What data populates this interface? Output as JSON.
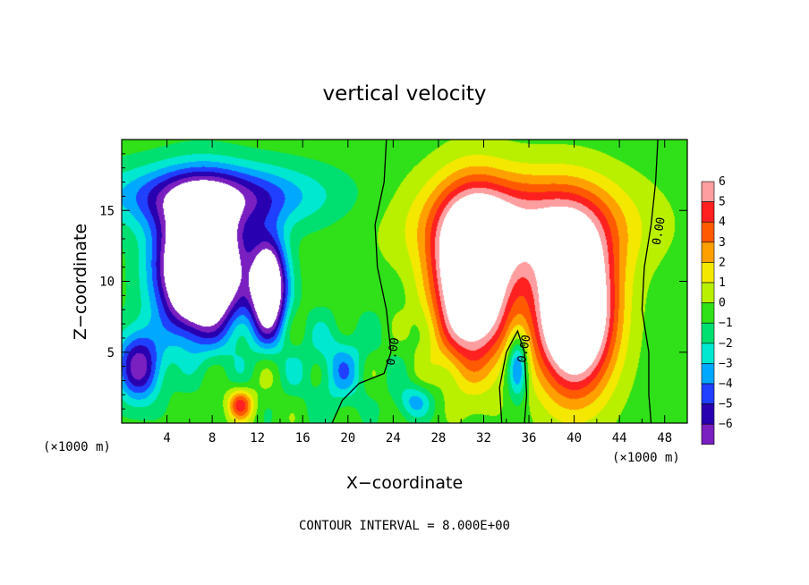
{
  "chart_data": {
    "type": "heatmap",
    "title": "vertical velocity",
    "xlabel": "X−coordinate",
    "ylabel": "Z−coordinate",
    "x_unit_left": "(×1000 m)",
    "x_unit_right": "(×1000 m)",
    "xlim": [
      0,
      50
    ],
    "ylim": [
      0,
      20
    ],
    "x_ticks": [
      4,
      8,
      12,
      16,
      20,
      24,
      28,
      32,
      36,
      40,
      44,
      48
    ],
    "x_tick_labels": [
      "4",
      "8",
      "12",
      "16",
      "20",
      "24",
      "28",
      "32",
      "36",
      "40",
      "44",
      "48"
    ],
    "y_ticks": [
      5,
      10,
      15
    ],
    "y_tick_labels": [
      "5",
      "10",
      "15"
    ],
    "colorbar": {
      "levels": [
        6,
        5,
        4,
        3,
        2,
        1,
        0,
        -1,
        -2,
        -3,
        -4,
        -5,
        -6
      ],
      "labels": [
        "6",
        "5",
        "4",
        "3",
        "2",
        "1",
        "0",
        "−1",
        "−2",
        "−3",
        "−4",
        "−5",
        "−6"
      ],
      "colors": [
        "#ff9ea0",
        "#ff2020",
        "#ff5a00",
        "#ffa000",
        "#f4e800",
        "#b8f000",
        "#30e018",
        "#00e070",
        "#00e8d0",
        "#00a8ff",
        "#2040ff",
        "#2800b0",
        "#7a1fc0"
      ]
    },
    "contour_interval_text": "CONTOUR INTERVAL = 8.000E+00",
    "contour_labels": [
      "0.00",
      "0.00",
      "0.00"
    ],
    "features": [
      {
        "sign": "negative",
        "x": 7,
        "z": 11,
        "peak": -14
      },
      {
        "sign": "negative",
        "x": 13,
        "z": 9.5,
        "peak": -10
      },
      {
        "sign": "positive",
        "x": 31,
        "z": 10,
        "peak": 12
      },
      {
        "sign": "positive",
        "x": 40,
        "z": 8,
        "peak": 13
      },
      {
        "sign": "positive",
        "x": 10.5,
        "z": 1.3,
        "peak": 5
      },
      {
        "sign": "negative",
        "x": 35,
        "z": 4,
        "peak": -5
      }
    ]
  }
}
